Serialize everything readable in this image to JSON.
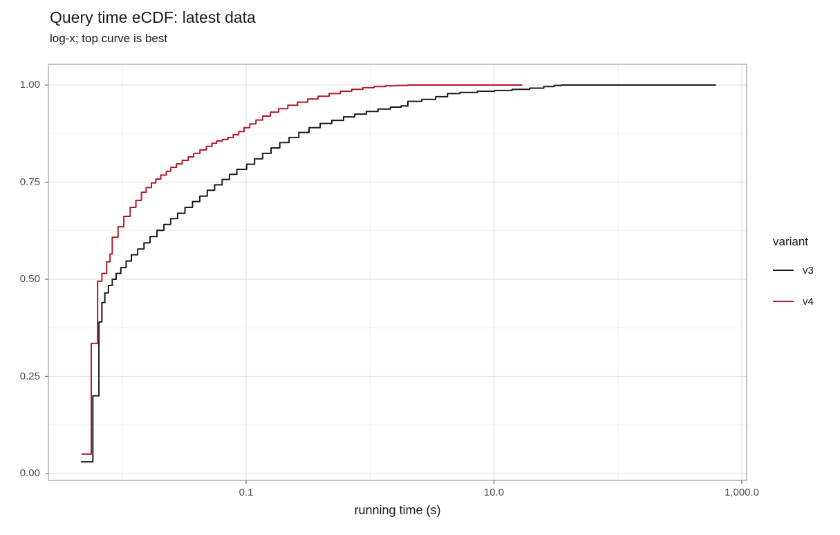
{
  "title": "Query time eCDF: latest data",
  "subtitle": "log-x; top curve is best",
  "chart_data": {
    "type": "line",
    "subtype": "ecdf-step",
    "title": "Query time eCDF: latest data",
    "subtitle": "log-x; top curve is best",
    "xlabel": "running time (s)",
    "ylabel": "",
    "x_axis": {
      "scale": "log10",
      "ticks": [
        0.1,
        10.0,
        1000.0
      ],
      "tick_labels": [
        "0.1",
        "10.0",
        "1,000.0"
      ],
      "minor_gridlines": [
        0.01,
        1.0,
        100.0
      ],
      "range": [
        0.0026,
        1100
      ]
    },
    "y_axis": {
      "ticks": [
        0.0,
        0.25,
        0.5,
        0.75,
        1.0
      ],
      "tick_labels": [
        "0.00",
        "0.25",
        "0.50",
        "0.75",
        "1.00"
      ],
      "minor_gridlines": [
        0.125,
        0.375,
        0.625,
        0.875
      ],
      "range": [
        -0.02,
        1.05
      ]
    },
    "grid": true,
    "legend": {
      "title": "variant",
      "position": "right",
      "entries": [
        {
          "label": "v3",
          "color": "#1a1a1a"
        },
        {
          "label": "v4",
          "color": "#b2182b"
        }
      ]
    },
    "series": [
      {
        "name": "v3",
        "color": "#1a1a1a",
        "points": [
          [
            0.00464,
            0.03
          ],
          [
            0.0058,
            0.2
          ],
          [
            0.00649,
            0.39
          ],
          [
            0.00686,
            0.44
          ],
          [
            0.00724,
            0.465
          ],
          [
            0.00774,
            0.484
          ],
          [
            0.00832,
            0.5
          ],
          [
            0.00894,
            0.515
          ],
          [
            0.00975,
            0.53
          ],
          [
            0.01075,
            0.547
          ],
          [
            0.01185,
            0.563
          ],
          [
            0.01333,
            0.578
          ],
          [
            0.015,
            0.594
          ],
          [
            0.0168,
            0.61
          ],
          [
            0.0191,
            0.626
          ],
          [
            0.0217,
            0.641
          ],
          [
            0.0246,
            0.656
          ],
          [
            0.028,
            0.67
          ],
          [
            0.0321,
            0.685
          ],
          [
            0.0369,
            0.7
          ],
          [
            0.0423,
            0.714
          ],
          [
            0.0486,
            0.729
          ],
          [
            0.0557,
            0.743
          ],
          [
            0.064,
            0.757
          ],
          [
            0.0734,
            0.77
          ],
          [
            0.0842,
            0.783
          ],
          [
            0.101,
            0.796
          ],
          [
            0.117,
            0.81
          ],
          [
            0.136,
            0.824
          ],
          [
            0.159,
            0.838
          ],
          [
            0.187,
            0.852
          ],
          [
            0.222,
            0.865
          ],
          [
            0.266,
            0.878
          ],
          [
            0.322,
            0.89
          ],
          [
            0.396,
            0.901
          ],
          [
            0.492,
            0.909
          ],
          [
            0.611,
            0.918
          ],
          [
            0.752,
            0.925
          ],
          [
            0.933,
            0.932
          ],
          [
            1.16,
            0.938
          ],
          [
            1.46,
            0.943
          ],
          [
            1.78,
            0.946
          ],
          [
            2.02,
            0.958
          ],
          [
            2.62,
            0.963
          ],
          [
            3.38,
            0.97
          ],
          [
            4.22,
            0.978
          ],
          [
            5.32,
            0.981
          ],
          [
            7.35,
            0.984
          ],
          [
            10.1,
            0.986
          ],
          [
            14.0,
            0.989
          ],
          [
            19.4,
            0.992
          ],
          [
            25.2,
            0.996
          ],
          [
            30.6,
            0.999
          ],
          [
            34.9,
            1.0
          ],
          [
            616,
            1.0
          ]
        ]
      },
      {
        "name": "v4",
        "color": "#b2182b",
        "points": [
          [
            0.0047,
            0.05
          ],
          [
            0.00563,
            0.335
          ],
          [
            0.00633,
            0.495
          ],
          [
            0.00686,
            0.515
          ],
          [
            0.00749,
            0.545
          ],
          [
            0.00798,
            0.565
          ],
          [
            0.00832,
            0.608
          ],
          [
            0.00925,
            0.635
          ],
          [
            0.0103,
            0.662
          ],
          [
            0.0116,
            0.685
          ],
          [
            0.0129,
            0.703
          ],
          [
            0.0143,
            0.724
          ],
          [
            0.0156,
            0.736
          ],
          [
            0.0172,
            0.748
          ],
          [
            0.0187,
            0.758
          ],
          [
            0.0205,
            0.768
          ],
          [
            0.0227,
            0.778
          ],
          [
            0.0247,
            0.788
          ],
          [
            0.0274,
            0.797
          ],
          [
            0.0305,
            0.806
          ],
          [
            0.0341,
            0.815
          ],
          [
            0.0377,
            0.824
          ],
          [
            0.0424,
            0.833
          ],
          [
            0.0478,
            0.842
          ],
          [
            0.0531,
            0.85
          ],
          [
            0.0577,
            0.856
          ],
          [
            0.0645,
            0.86
          ],
          [
            0.0713,
            0.865
          ],
          [
            0.0787,
            0.872
          ],
          [
            0.0872,
            0.88
          ],
          [
            0.0962,
            0.89
          ],
          [
            0.107,
            0.9
          ],
          [
            0.12,
            0.91
          ],
          [
            0.136,
            0.92
          ],
          [
            0.157,
            0.93
          ],
          [
            0.183,
            0.939
          ],
          [
            0.217,
            0.948
          ],
          [
            0.26,
            0.956
          ],
          [
            0.314,
            0.964
          ],
          [
            0.38,
            0.971
          ],
          [
            0.468,
            0.978
          ],
          [
            0.577,
            0.984
          ],
          [
            0.712,
            0.989
          ],
          [
            0.875,
            0.993
          ],
          [
            1.08,
            0.996
          ],
          [
            1.33,
            0.998
          ],
          [
            1.63,
            0.999
          ],
          [
            2.02,
            1.0
          ],
          [
            16.9,
            1.0
          ]
        ]
      }
    ]
  },
  "colors": {
    "background": "#ffffff",
    "panel_border": "#9e9e9e",
    "grid_major": "#e2e2e2",
    "grid_minor": "#f0f0f0",
    "tick_mark": "#666666",
    "tick_text": "#4d4d4d",
    "text": "#1a1a1a",
    "v3": "#1a1a1a",
    "v4": "#b2182b"
  }
}
